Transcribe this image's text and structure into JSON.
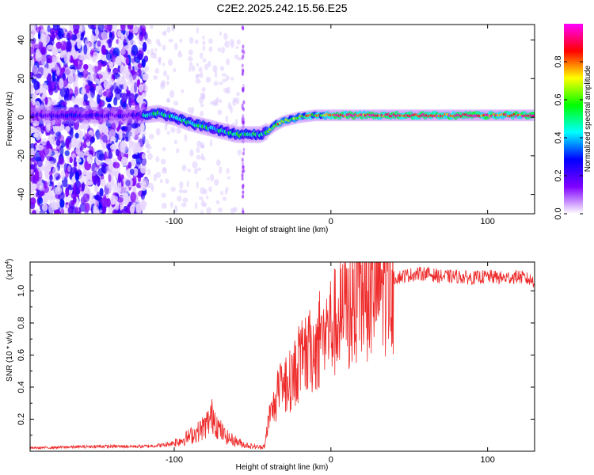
{
  "title": "C2E2.2025.242.15.56.E25",
  "chart_data": [
    {
      "type": "heatmap",
      "xlabel": "Height of straight line (km)",
      "ylabel": "Frequency (Hz)",
      "xlim": [
        -192,
        130
      ],
      "ylim": [
        -50,
        48
      ],
      "xticks": [
        -100,
        0,
        100
      ],
      "xtick_labels": [
        "-100",
        "0",
        "100"
      ],
      "yticks": [
        -40,
        -20,
        0,
        20,
        40
      ],
      "ytick_labels": [
        "-40",
        "-20",
        "0",
        "20",
        "40"
      ],
      "ridge_x": [
        -192,
        -120,
        -110,
        -100,
        -90,
        -80,
        -70,
        -60,
        -52,
        -45,
        -40,
        -35,
        -30,
        -25,
        -20,
        -10,
        0,
        10,
        20,
        40,
        60,
        80,
        100,
        130
      ],
      "ridge_y": [
        1,
        1,
        2,
        0,
        -3,
        -5,
        -7,
        -9,
        -9,
        -9,
        -7,
        -4,
        -2,
        -1,
        0,
        1,
        1,
        1,
        1,
        1,
        1,
        1,
        1,
        1
      ],
      "colorbar": {
        "label": "Normalized spectral amplitude",
        "range": [
          0,
          1
        ],
        "ticks": [
          0.0,
          0.2,
          0.4,
          0.6,
          0.8
        ],
        "tick_labels": [
          "0.0",
          "0.2",
          "0.4",
          "0.6",
          "0.8"
        ],
        "colors": [
          "#ffffff",
          "#8000ff",
          "#0000ff",
          "#00ffff",
          "#00ff00",
          "#ffff00",
          "#ff0000",
          "#ff00ff"
        ]
      }
    },
    {
      "type": "line",
      "xlabel": "Height of straight line (km)",
      "ylabel": "SNR (10 * v/v)",
      "scale_label": "(x10",
      "scale_exp": "4",
      "scale_close": ")",
      "xlim": [
        -192,
        130
      ],
      "ylim": [
        0,
        11800
      ],
      "xticks": [
        -100,
        0,
        100
      ],
      "xtick_labels": [
        "-100",
        "0",
        "100"
      ],
      "yticks": [
        2000,
        4000,
        6000,
        8000,
        10000
      ],
      "ytick_labels": [
        "0.2",
        "0.4",
        "0.6",
        "0.8",
        "1.0"
      ],
      "color": "#ee2a2a",
      "series": [
        {
          "name": "SNR",
          "x": [
            -192,
            -150,
            -120,
            -105,
            -95,
            -85,
            -80,
            -75,
            -72,
            -68,
            -65,
            -60,
            -55,
            -50,
            -45,
            -42,
            -40,
            -35,
            -30,
            -25,
            -20,
            -15,
            -10,
            -5,
            0,
            5,
            10,
            15,
            20,
            25,
            30,
            35,
            40,
            45,
            50,
            60,
            70,
            80,
            90,
            100,
            110,
            120,
            130
          ],
          "y": [
            200,
            300,
            300,
            400,
            700,
            1200,
            1600,
            2300,
            1500,
            1000,
            800,
            600,
            400,
            300,
            250,
            400,
            1800,
            3200,
            4000,
            4500,
            5500,
            6000,
            6500,
            7200,
            7800,
            8200,
            8600,
            9000,
            9600,
            9900,
            10300,
            10600,
            10800,
            10900,
            11000,
            11100,
            10900,
            10900,
            10800,
            10900,
            10800,
            10900,
            10600
          ]
        }
      ]
    }
  ]
}
